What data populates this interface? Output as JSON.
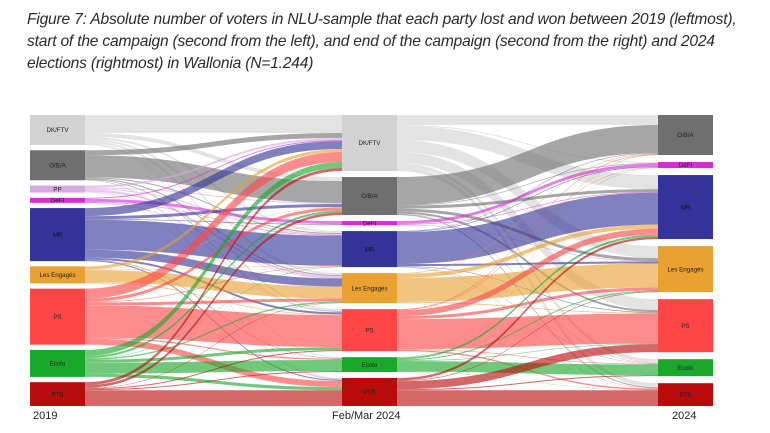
{
  "caption": "Figure 7: Absolute number of voters in NLU-sample that each party lost and won between 2019 (leftmost), start of the campaign (second from the left), and end of the campaign (second from the right) and 2024 elections (rightmost) in Wallonia (N=1.244)",
  "chart_data": {
    "type": "sankey",
    "title": "Figure 7: Absolute number of voters in NLU-sample that each party lost and won between 2019 (leftmost), start of the campaign (second from the left), and end of the campaign (second from the right) and 2024 elections (rightmost) in Wallonia (N=1.244)",
    "total": 1244,
    "colors": {
      "DK/FTV": "#d2d2d2",
      "O/B/A": "#6f6f6f",
      "PP": "#d8a8e0",
      "DéFI": "#d82ad8",
      "MR": "#33339a",
      "Les Engagés": "#e9a232",
      "PS": "#ff4646",
      "Ecolo": "#19a82a",
      "PTB": "#b90b0b"
    },
    "columns": [
      {
        "label": "2019",
        "nodes": [
          "DK/FTV",
          "O/B/A",
          "PP",
          "DéFI",
          "MR",
          "Les Engagés",
          "PS",
          "Ecolo",
          "PTB"
        ],
        "values": [
          150,
          150,
          35,
          25,
          265,
          85,
          280,
          135,
          119
        ]
      },
      {
        "label": "Feb/Mar 2024",
        "nodes": [
          "DK/FTV",
          "O/B/A",
          "DéFI",
          "MR",
          "Les Engagés",
          "PS",
          "Ecolo",
          "PTB"
        ],
        "values": [
          280,
          190,
          20,
          180,
          150,
          210,
          74,
          140
        ]
      },
      {
        "label": "2024",
        "nodes": [
          "O/B/A",
          "DéFI",
          "MR",
          "Les Engagés",
          "PS",
          "Ecolo",
          "PTB"
        ],
        "values": [
          200,
          30,
          320,
          230,
          265,
          85,
          114
        ]
      }
    ],
    "flows": [
      [
        [
          90,
          20,
          0,
          10,
          10,
          10,
          5,
          5
        ],
        [
          25,
          110,
          0,
          5,
          5,
          3,
          0,
          2
        ],
        [
          10,
          5,
          0,
          5,
          10,
          3,
          0,
          2
        ],
        [
          5,
          0,
          15,
          3,
          2,
          0,
          0,
          0
        ],
        [
          40,
          15,
          3,
          150,
          40,
          10,
          2,
          5
        ],
        [
          15,
          2,
          0,
          2,
          60,
          4,
          1,
          1
        ],
        [
          50,
          15,
          1,
          3,
          15,
          160,
          6,
          30
        ],
        [
          30,
          10,
          1,
          2,
          6,
          15,
          55,
          16
        ],
        [
          15,
          13,
          0,
          0,
          2,
          5,
          5,
          79
        ]
      ],
      [
        [
          50,
          5,
          70,
          60,
          55,
          20,
          20
        ],
        [
          140,
          3,
          15,
          15,
          10,
          2,
          5
        ],
        [
          0,
          15,
          3,
          2,
          0,
          0,
          0
        ],
        [
          2,
          3,
          160,
          10,
          3,
          1,
          1
        ],
        [
          3,
          1,
          20,
          120,
          4,
          1,
          1
        ],
        [
          3,
          2,
          30,
          15,
          150,
          3,
          7
        ],
        [
          1,
          1,
          10,
          5,
          3,
          53,
          1
        ],
        [
          1,
          0,
          12,
          3,
          40,
          5,
          79
        ]
      ]
    ]
  }
}
